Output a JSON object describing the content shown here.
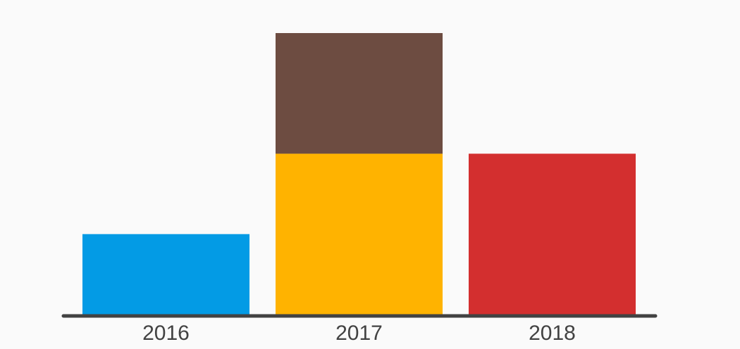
{
  "chart_data": {
    "type": "bar",
    "stacked": true,
    "categories": [
      "2016",
      "2017",
      "2018"
    ],
    "series": [
      {
        "values": [
          1,
          2,
          2
        ],
        "colors": [
          "#039be5",
          "#ffb300",
          "#d32f2f"
        ]
      },
      {
        "values": [
          0,
          1.5,
          0
        ],
        "colors": [
          "#6d4c41",
          "#6d4c41",
          "#6d4c41"
        ]
      }
    ],
    "ylim": [
      0,
      3.5
    ],
    "grid": false,
    "legend": "none",
    "axis_color": "#424242"
  }
}
